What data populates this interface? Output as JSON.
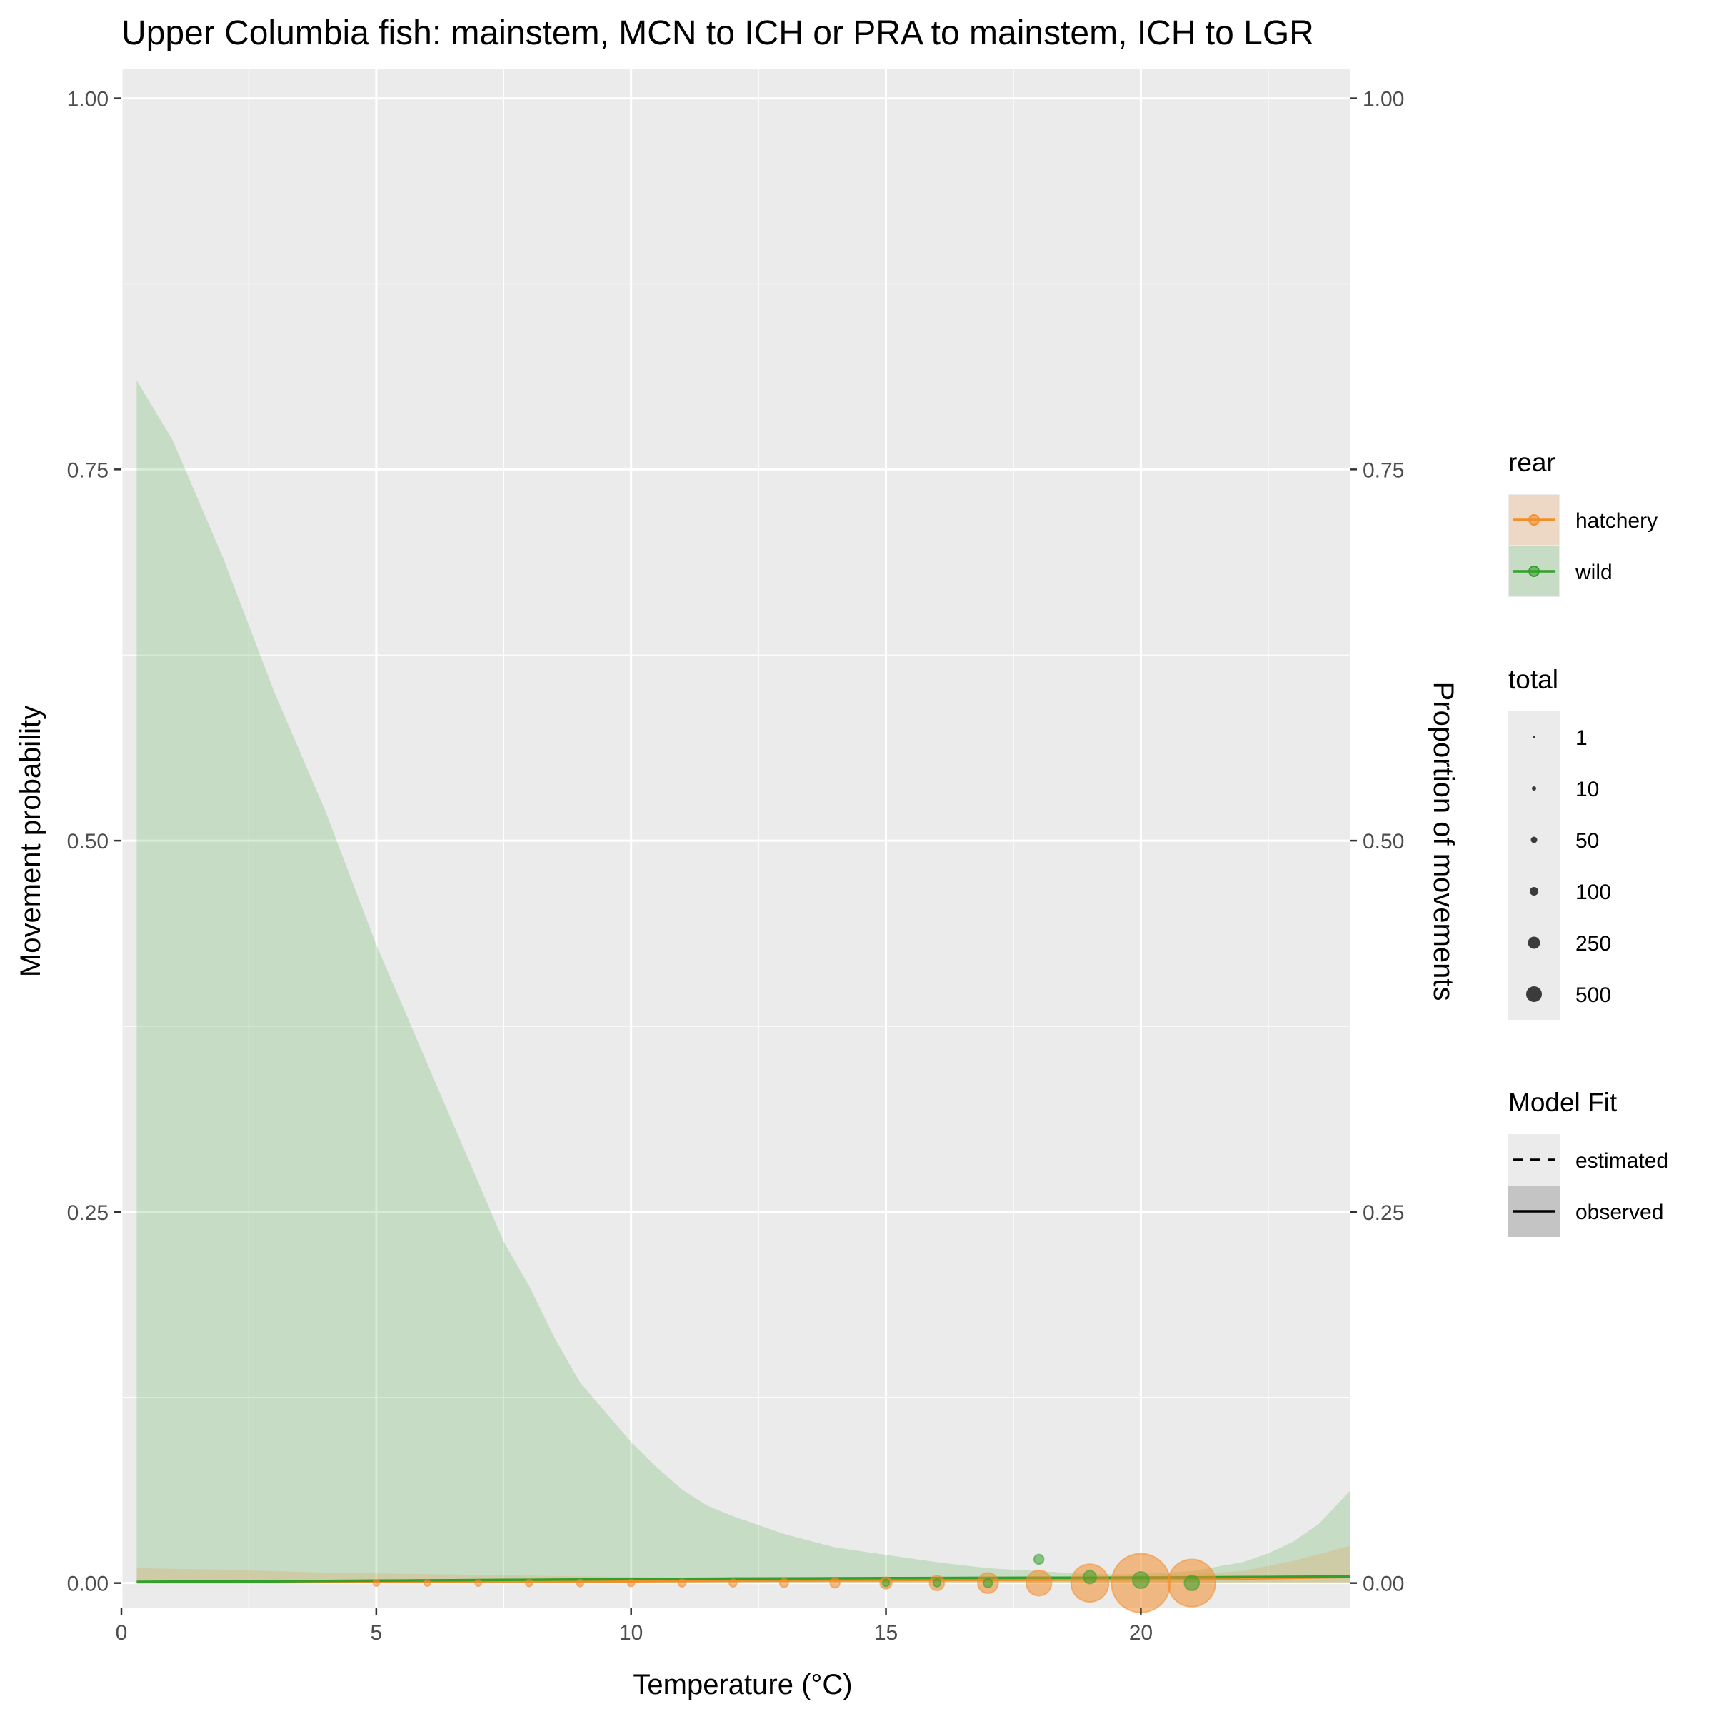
{
  "chart_data": {
    "type": "line",
    "title": "Upper Columbia fish: mainstem, MCN to ICH or PRA to mainstem, ICH to LGR",
    "xlabel": "Temperature (°C)",
    "ylabel": "Movement probability",
    "ylabel_right": "Proportion of movements",
    "xlim": [
      0,
      24.1
    ],
    "ylim": [
      -0.017,
      1.02
    ],
    "x_ticks": [
      0,
      5,
      10,
      15,
      20
    ],
    "y_ticks": [
      0,
      0.25,
      0.5,
      0.75,
      1
    ],
    "x_tick_labels": [
      "0",
      "5",
      "10",
      "15",
      "20"
    ],
    "y_tick_labels": [
      "0.00",
      "0.25",
      "0.50",
      "0.75",
      "1.00"
    ],
    "grid": true,
    "legend_position": "right",
    "colors": {
      "hatchery": "#f28e2b",
      "wild": "#33a02c",
      "panel": "#ebebeb",
      "grid": "#ffffff"
    },
    "series": [
      {
        "name": "hatchery",
        "x": [
          0.3,
          2,
          4,
          6,
          8,
          10,
          12,
          14,
          16,
          18,
          20,
          22,
          23,
          24.1
        ],
        "values": [
          0.0005,
          0.0005,
          0.0006,
          0.0008,
          0.001,
          0.0012,
          0.0015,
          0.0018,
          0.002,
          0.0022,
          0.0025,
          0.003,
          0.0035,
          0.004
        ],
        "ribbon_lower": [
          0,
          0,
          0,
          0,
          0,
          0,
          0,
          0,
          0,
          0,
          0,
          0,
          0,
          0
        ],
        "ribbon_upper": [
          0.01,
          0.009,
          0.007,
          0.006,
          0.005,
          0.004,
          0.0035,
          0.003,
          0.003,
          0.0032,
          0.004,
          0.008,
          0.015,
          0.025
        ]
      },
      {
        "name": "wild",
        "x": [
          0.3,
          1,
          1.5,
          2,
          2.5,
          3,
          3.5,
          4,
          4.5,
          5,
          5.5,
          6,
          6.5,
          7,
          7.5,
          8,
          8.5,
          9,
          9.5,
          10,
          10.5,
          11,
          11.5,
          12,
          13,
          14,
          15,
          16,
          17,
          18,
          19,
          20,
          21,
          21.5,
          22,
          22.5,
          23,
          23.5,
          24.1
        ],
        "values": [
          0.0008,
          0.0009,
          0.001,
          0.001,
          0.0011,
          0.0012,
          0.0013,
          0.0014,
          0.0015,
          0.0016,
          0.0017,
          0.0018,
          0.0019,
          0.002,
          0.0021,
          0.0022,
          0.0023,
          0.0024,
          0.0025,
          0.0026,
          0.0027,
          0.0028,
          0.0029,
          0.003,
          0.0031,
          0.0032,
          0.0033,
          0.0034,
          0.0035,
          0.0036,
          0.0036,
          0.0037,
          0.0038,
          0.0039,
          0.004,
          0.0041,
          0.0042,
          0.0043,
          0.0045
        ],
        "ribbon_lower": [
          0,
          0,
          0,
          0,
          0,
          0,
          0,
          0,
          0,
          0,
          0,
          0,
          0,
          0,
          0,
          0,
          0,
          0,
          0,
          0,
          0,
          0,
          0,
          0,
          0,
          0,
          0,
          0,
          0,
          0,
          0,
          0,
          0,
          0,
          0,
          0,
          0,
          0,
          0
        ],
        "ribbon_upper": [
          0.81,
          0.77,
          0.73,
          0.69,
          0.645,
          0.6,
          0.56,
          0.52,
          0.475,
          0.43,
          0.39,
          0.35,
          0.31,
          0.27,
          0.23,
          0.2,
          0.165,
          0.135,
          0.115,
          0.095,
          0.078,
          0.063,
          0.052,
          0.045,
          0.033,
          0.024,
          0.019,
          0.014,
          0.01,
          0.008,
          0.006,
          0.006,
          0.008,
          0.011,
          0.014,
          0.02,
          0.028,
          0.04,
          0.062
        ]
      }
    ],
    "points": [
      {
        "rear": "hatchery",
        "x": 5,
        "y": 0,
        "total": 1
      },
      {
        "rear": "hatchery",
        "x": 6,
        "y": 0,
        "total": 1
      },
      {
        "rear": "hatchery",
        "x": 7,
        "y": 0,
        "total": 1
      },
      {
        "rear": "hatchery",
        "x": 8,
        "y": 0,
        "total": 2
      },
      {
        "rear": "hatchery",
        "x": 9,
        "y": 0,
        "total": 2
      },
      {
        "rear": "hatchery",
        "x": 10,
        "y": 0,
        "total": 2
      },
      {
        "rear": "hatchery",
        "x": 11,
        "y": 0,
        "total": 3
      },
      {
        "rear": "hatchery",
        "x": 12,
        "y": 0,
        "total": 3
      },
      {
        "rear": "hatchery",
        "x": 13,
        "y": 0,
        "total": 5
      },
      {
        "rear": "hatchery",
        "x": 14,
        "y": 0,
        "total": 8
      },
      {
        "rear": "hatchery",
        "x": 15,
        "y": 0,
        "total": 15
      },
      {
        "rear": "hatchery",
        "x": 16,
        "y": 0,
        "total": 30
      },
      {
        "rear": "hatchery",
        "x": 17,
        "y": 0,
        "total": 70
      },
      {
        "rear": "hatchery",
        "x": 18,
        "y": 0,
        "total": 120
      },
      {
        "rear": "hatchery",
        "x": 19,
        "y": 0,
        "total": 300
      },
      {
        "rear": "hatchery",
        "x": 20,
        "y": 0,
        "total": 800
      },
      {
        "rear": "hatchery",
        "x": 21,
        "y": 0,
        "total": 500
      },
      {
        "rear": "wild",
        "x": 15,
        "y": 0,
        "total": 2
      },
      {
        "rear": "wild",
        "x": 16,
        "y": 0,
        "total": 3
      },
      {
        "rear": "wild",
        "x": 17,
        "y": 0,
        "total": 6
      },
      {
        "rear": "wild",
        "x": 18,
        "y": 0.016,
        "total": 8
      },
      {
        "rear": "wild",
        "x": 19,
        "y": 0.004,
        "total": 20
      },
      {
        "rear": "wild",
        "x": 20,
        "y": 0.002,
        "total": 40
      },
      {
        "rear": "wild",
        "x": 21,
        "y": 0,
        "total": 30
      }
    ]
  },
  "legend": {
    "rear": {
      "title": "rear",
      "items": [
        {
          "label": "hatchery",
          "key": "hatchery"
        },
        {
          "label": "wild",
          "key": "wild"
        }
      ]
    },
    "total": {
      "title": "total",
      "items": [
        {
          "label": "1",
          "value": 1
        },
        {
          "label": "10",
          "value": 10
        },
        {
          "label": "50",
          "value": 50
        },
        {
          "label": "100",
          "value": 100
        },
        {
          "label": "250",
          "value": 250
        },
        {
          "label": "500",
          "value": 500
        }
      ]
    },
    "model_fit": {
      "title": "Model Fit",
      "items": [
        {
          "label": "estimated",
          "style": "dashed"
        },
        {
          "label": "observed",
          "style": "solid"
        }
      ]
    }
  }
}
